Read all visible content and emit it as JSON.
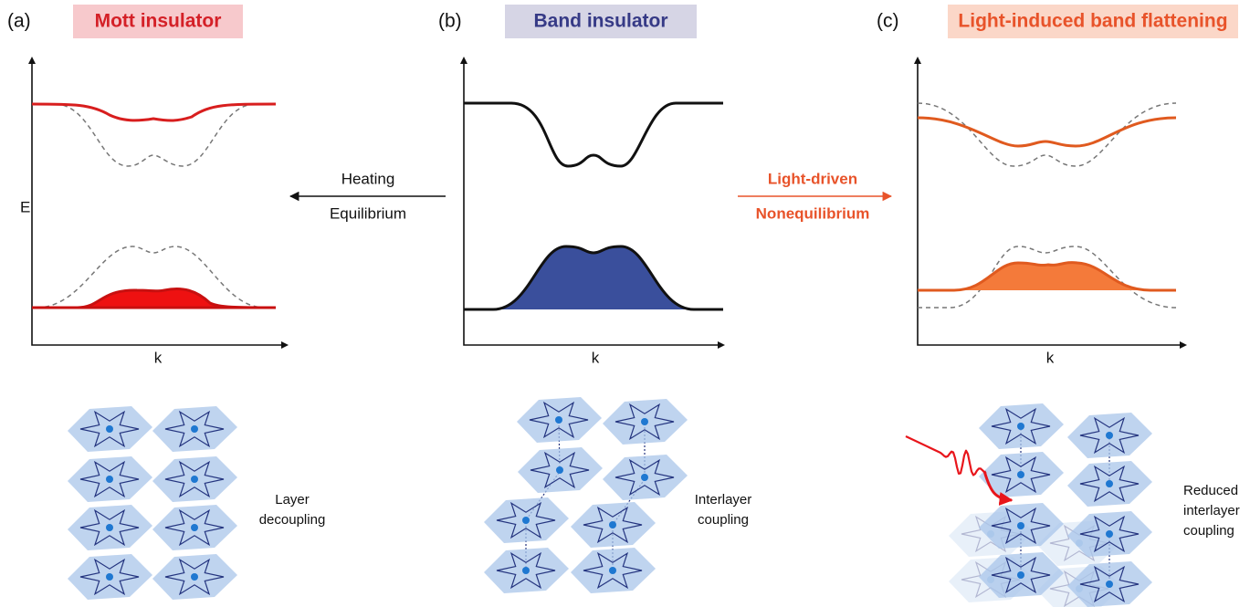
{
  "panels": [
    {
      "label": "(a)",
      "title": "Mott insulator",
      "y_axis": "E",
      "x_axis": "k",
      "caption": [
        "Layer",
        "decoupling"
      ]
    },
    {
      "label": "(b)",
      "title": "Band insulator",
      "x_axis": "k",
      "caption": [
        "Interlayer",
        "coupling"
      ]
    },
    {
      "label": "(c)",
      "title": "Light-induced band flattening",
      "x_axis": "k",
      "caption": [
        "Reduced",
        "interlayer",
        "coupling"
      ]
    }
  ],
  "transitions": [
    {
      "top": "Heating",
      "bottom": "Equilibrium"
    },
    {
      "top": "Light-driven",
      "bottom": "Nonequilibrium"
    }
  ]
}
